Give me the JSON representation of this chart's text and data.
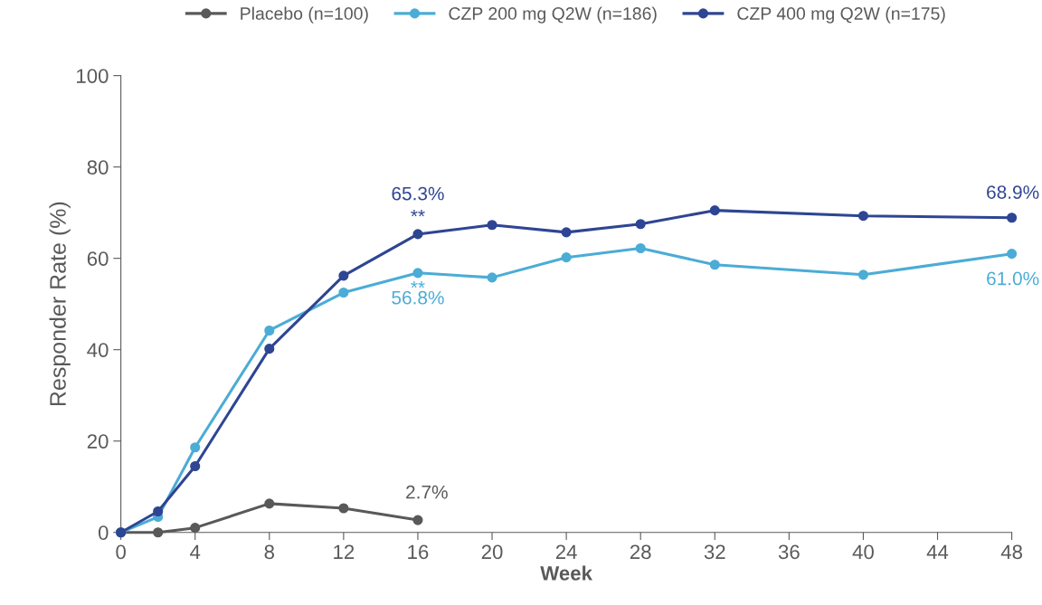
{
  "chart_data": {
    "type": "line",
    "xlabel": "Week",
    "ylabel": "Responder Rate (%)",
    "x": [
      0,
      2,
      4,
      8,
      12,
      16,
      20,
      24,
      28,
      32,
      40,
      48
    ],
    "series": [
      {
        "name": "Placebo (n=100)",
        "color": "#595959",
        "values": [
          0,
          0,
          1.0,
          6.3,
          5.3,
          2.7,
          null,
          null,
          null,
          null,
          null,
          null
        ],
        "value_labels": [
          null,
          null,
          null,
          null,
          null,
          "2.7%",
          null,
          null,
          null,
          null,
          null,
          null
        ]
      },
      {
        "name": "CZP 200 mg Q2W (n=186)",
        "color": "#4bacd6",
        "values": [
          0,
          3.4,
          18.6,
          44.2,
          52.5,
          56.8,
          55.8,
          60.2,
          62.2,
          58.6,
          56.4,
          61.0
        ],
        "value_labels": [
          null,
          null,
          null,
          null,
          null,
          "56.8%",
          null,
          null,
          null,
          null,
          null,
          "61.0%"
        ]
      },
      {
        "name": "CZP 400 mg Q2W (n=175)",
        "color": "#2e4593",
        "values": [
          0,
          4.6,
          14.5,
          40.2,
          56.2,
          65.3,
          67.3,
          65.7,
          67.5,
          70.5,
          69.3,
          68.9
        ],
        "value_labels": [
          null,
          null,
          null,
          null,
          null,
          "65.3%",
          null,
          null,
          null,
          null,
          null,
          "68.9%"
        ]
      }
    ],
    "annotations": [
      {
        "text": "**",
        "x": 16,
        "y": 65.3
      },
      {
        "text": "**",
        "x": 16,
        "y": 56.8
      }
    ],
    "xlim": [
      0,
      48
    ],
    "xticks": [
      0,
      4,
      8,
      12,
      16,
      20,
      24,
      28,
      32,
      36,
      40,
      44,
      48
    ],
    "ylim": [
      0,
      100
    ],
    "yticks": [
      0,
      20,
      40,
      60,
      80,
      100
    ],
    "grid": false,
    "legend": "top",
    "marker": "circle",
    "line_style": "solid"
  }
}
